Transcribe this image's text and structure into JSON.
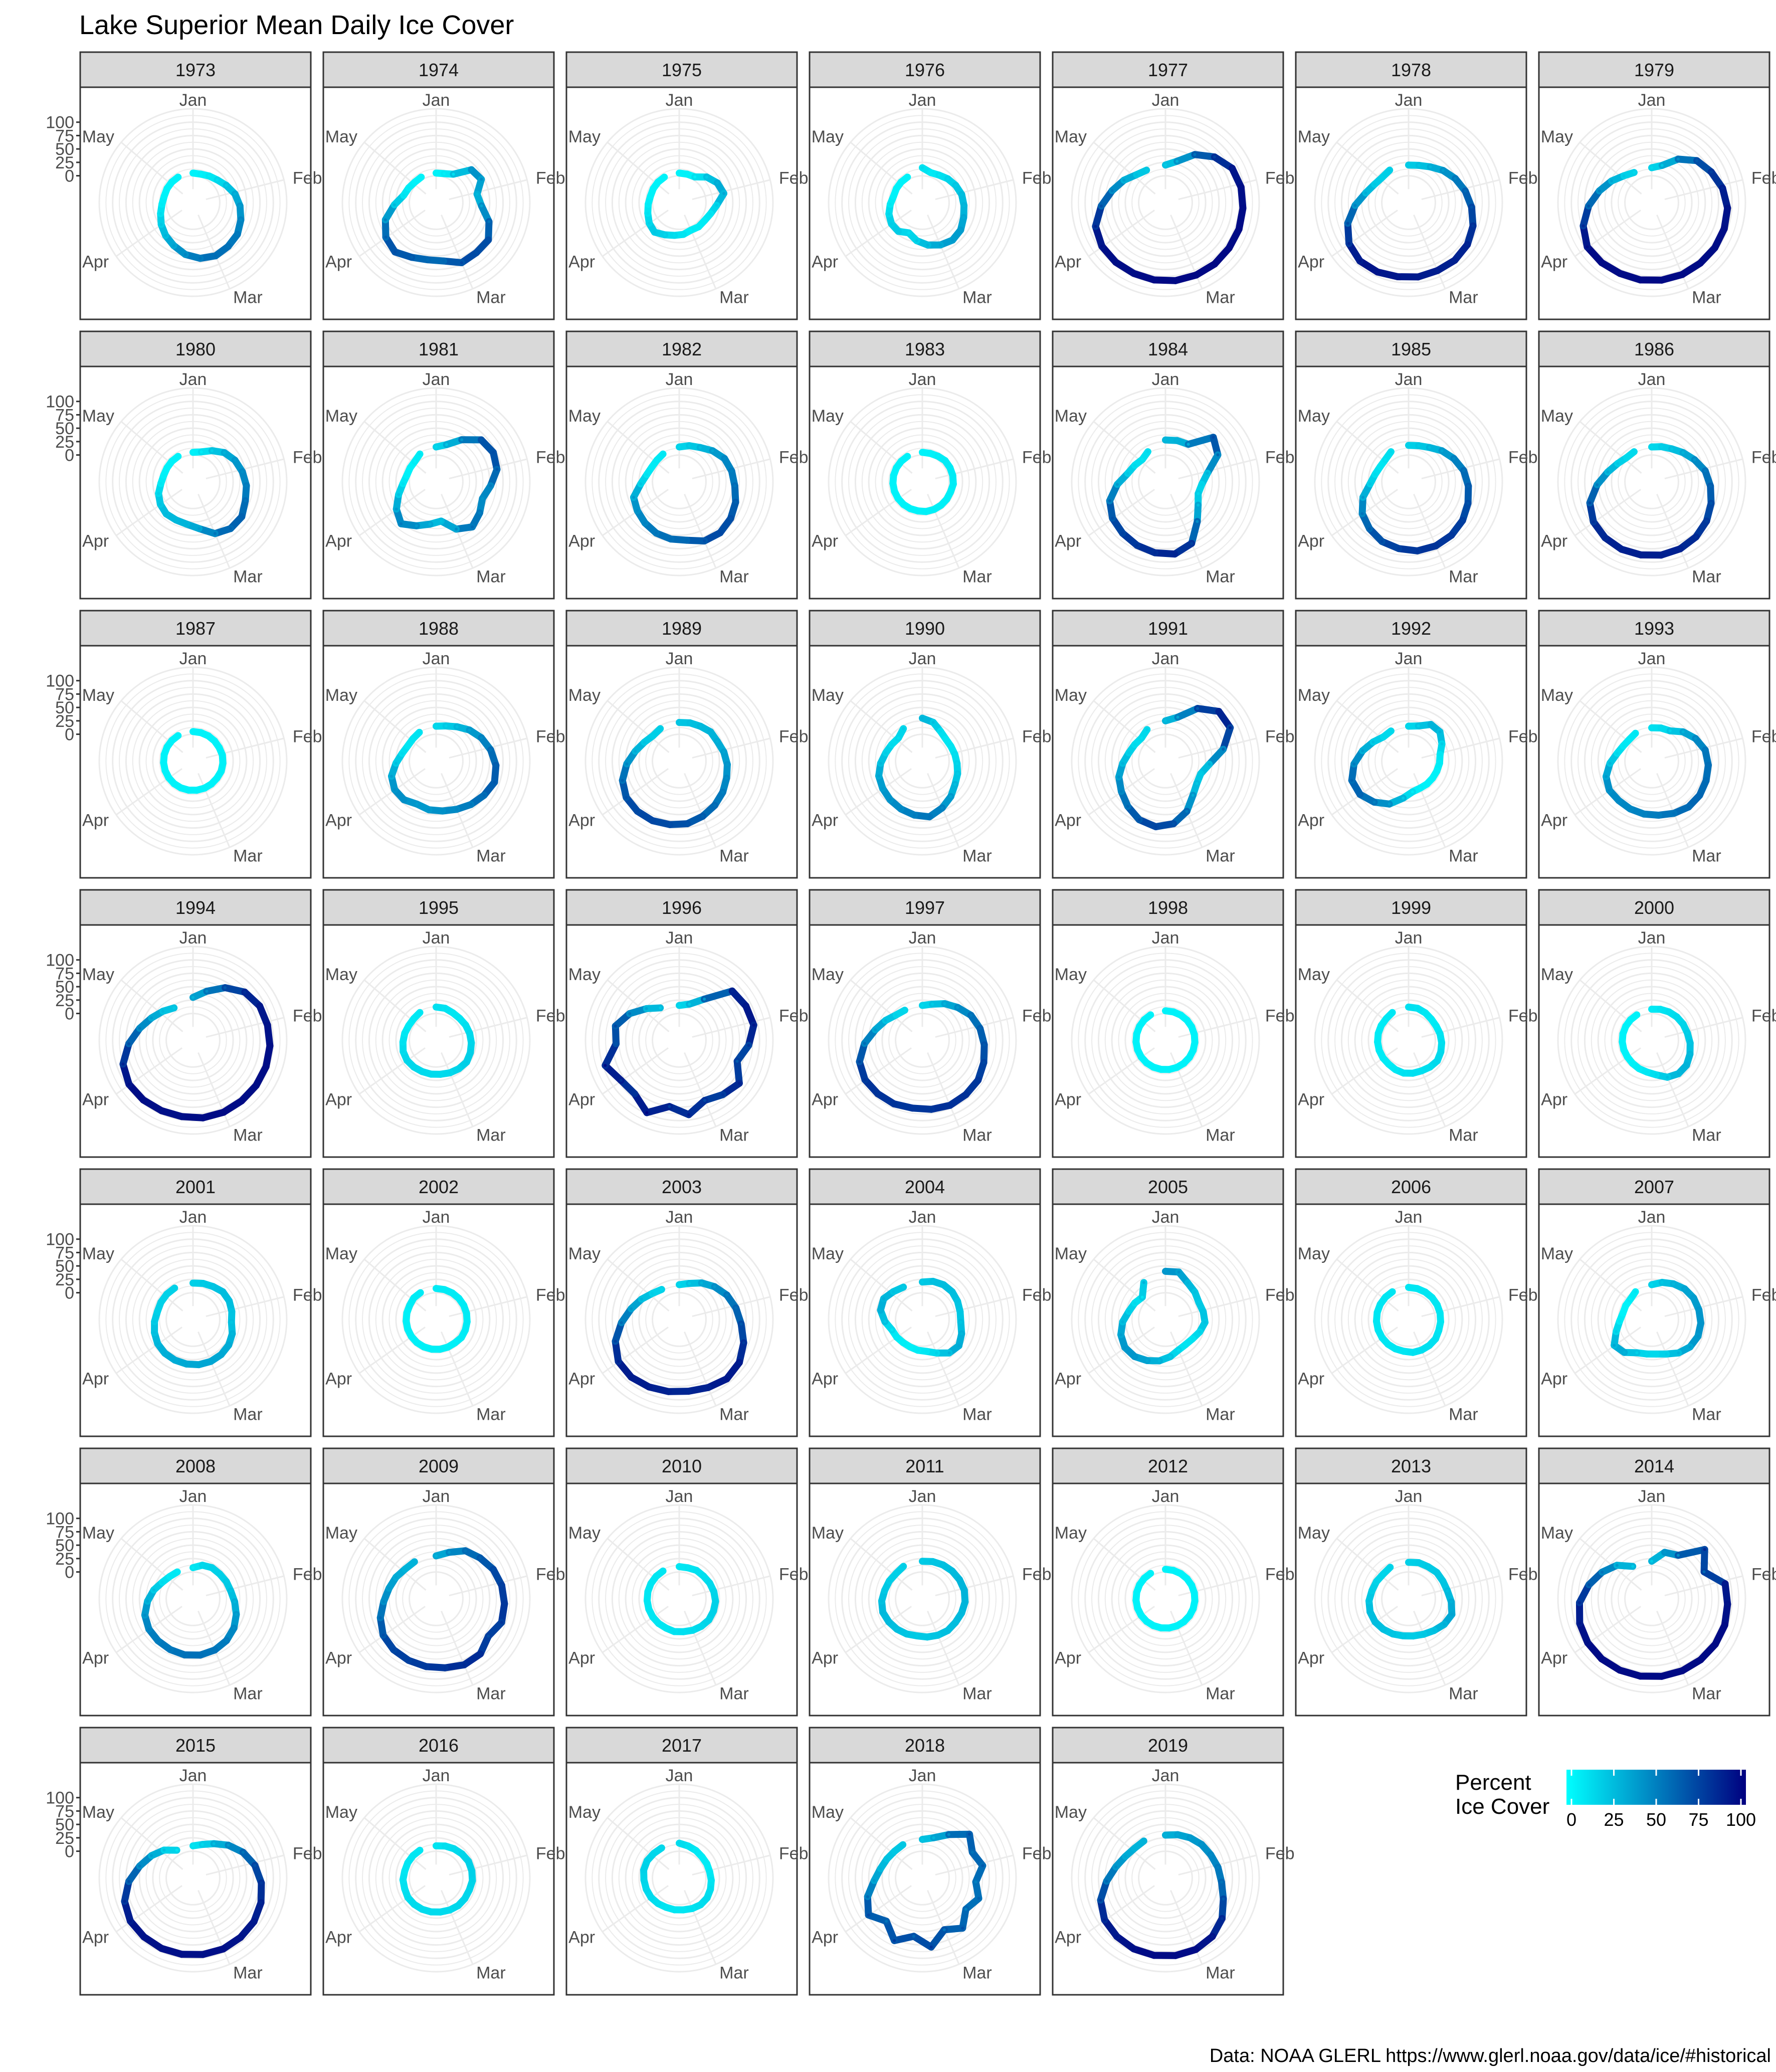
{
  "title": "Lake Superior Mean Daily Ice Cover",
  "caption": "Data: NOAA GLERL https://www.glerl.noaa.gov/data/ice/#historical",
  "colors": {
    "low": "#00FFFF",
    "high": "#000080",
    "strip_fill": "#D9D9D9",
    "panel_border": "#333333",
    "grid": "#EBEBEB",
    "axis_text": "#4D4D4D",
    "text": "#000000"
  },
  "chart_data": {
    "type": "polar-line",
    "facet_by": "year",
    "radial_axis": {
      "ticks": [
        "0",
        "25",
        "50",
        "75",
        "100"
      ],
      "range": [
        -50,
        125
      ]
    },
    "angular_axis": {
      "labels": [
        {
          "label": "Jan",
          "angle_deg": 0
        },
        {
          "label": "Feb",
          "angle_deg": 76
        },
        {
          "label": "Mar",
          "angle_deg": 157
        },
        {
          "label": "Apr",
          "angle_deg": 235
        },
        {
          "label": "May",
          "angle_deg": 310
        }
      ]
    },
    "legend": {
      "title_lines": [
        "Percent",
        "Ice Cover"
      ],
      "ticks": [
        "0",
        "25",
        "50",
        "75",
        "100"
      ],
      "position": "bottom-right"
    },
    "panels": [
      {
        "year": "1973",
        "values": [
          5,
          5,
          8,
          12,
          20,
          30,
          38,
          45,
          52,
          55,
          58,
          55,
          48,
          38,
          30,
          22,
          14,
          8,
          5,
          5,
          5,
          5
        ]
      },
      {
        "year": "1974",
        "values": [
          5,
          6,
          12,
          40,
          45,
          28,
          35,
          55,
          70,
          70,
          72,
          60,
          58,
          62,
          70,
          64,
          50,
          28,
          12,
          8,
          5,
          5
        ]
      },
      {
        "year": "1975",
        "values": [
          5,
          5,
          6,
          20,
          30,
          35,
          20,
          12,
          8,
          8,
          6,
          10,
          12,
          16,
          22,
          18,
          12,
          8,
          5,
          5,
          5,
          5
        ]
      },
      {
        "year": "1976",
        "values": [
          15,
          8,
          10,
          15,
          20,
          25,
          28,
          32,
          38,
          40,
          36,
          30,
          22,
          12,
          20,
          20,
          16,
          10,
          5,
          5,
          5,
          5
        ]
      },
      {
        "year": "1977",
        "values": [
          20,
          30,
          55,
          75,
          90,
          94,
          95,
          96,
          96,
          97,
          97,
          97,
          96,
          95,
          95,
          94,
          88,
          70,
          52,
          38,
          25,
          20
        ]
      },
      {
        "year": "1978",
        "values": [
          20,
          22,
          28,
          38,
          48,
          58,
          68,
          78,
          85,
          88,
          88,
          90,
          90,
          92,
          92,
          85,
          70,
          50,
          32,
          22,
          18,
          20
        ]
      },
      {
        "year": "1979",
        "values": [
          15,
          22,
          45,
          65,
          75,
          85,
          92,
          94,
          95,
          95,
          96,
          96,
          96,
          95,
          96,
          96,
          85,
          68,
          50,
          35,
          22,
          15
        ]
      },
      {
        "year": "1980",
        "values": [
          5,
          8,
          18,
          30,
          38,
          44,
          50,
          54,
          62,
          62,
          55,
          38,
          30,
          28,
          28,
          24,
          18,
          10,
          6,
          5,
          5,
          5
        ]
      },
      {
        "year": "1981",
        "values": [
          15,
          22,
          42,
          65,
          70,
          66,
          52,
          42,
          50,
          58,
          46,
          24,
          30,
          40,
          52,
          40,
          24,
          12,
          6,
          5,
          5,
          10
        ]
      },
      {
        "year": "1982",
        "values": [
          15,
          20,
          25,
          35,
          45,
          50,
          54,
          62,
          68,
          72,
          70,
          60,
          58,
          55,
          50,
          45,
          40,
          22,
          12,
          8,
          8,
          10
        ]
      },
      {
        "year": "1983",
        "values": [
          5,
          5,
          6,
          8,
          8,
          8,
          8,
          6,
          6,
          6,
          6,
          6,
          5,
          5,
          5,
          5,
          5,
          5,
          5,
          5,
          5,
          5
        ]
      },
      {
        "year": "1984",
        "values": [
          28,
          30,
          32,
          72,
          60,
          30,
          18,
          15,
          25,
          45,
          75,
          86,
          84,
          80,
          75,
          70,
          60,
          40,
          22,
          15,
          10,
          15
        ]
      },
      {
        "year": "1985",
        "values": [
          18,
          20,
          25,
          35,
          45,
          55,
          62,
          68,
          74,
          78,
          80,
          80,
          76,
          72,
          64,
          55,
          40,
          22,
          14,
          10,
          10,
          15
        ]
      },
      {
        "year": "1986",
        "values": [
          15,
          18,
          22,
          30,
          40,
          52,
          60,
          68,
          76,
          82,
          86,
          88,
          88,
          88,
          86,
          82,
          72,
          52,
          34,
          22,
          15,
          15
        ]
      },
      {
        "year": "1987",
        "values": [
          5,
          5,
          5,
          5,
          5,
          6,
          6,
          6,
          5,
          5,
          5,
          5,
          5,
          5,
          5,
          5,
          5,
          5,
          5,
          5,
          5,
          5
        ]
      },
      {
        "year": "1988",
        "values": [
          15,
          18,
          25,
          35,
          45,
          54,
          62,
          66,
          60,
          54,
          48,
          44,
          42,
          38,
          44,
          44,
          38,
          25,
          15,
          10,
          10,
          12
        ]
      },
      {
        "year": "1989",
        "values": [
          22,
          24,
          26,
          30,
          30,
          35,
          40,
          44,
          50,
          56,
          62,
          68,
          70,
          72,
          72,
          70,
          62,
          48,
          34,
          24,
          18,
          20
        ]
      },
      {
        "year": "1990",
        "values": [
          30,
          25,
          15,
          10,
          10,
          12,
          15,
          20,
          25,
          35,
          45,
          55,
          52,
          48,
          44,
          40,
          36,
          28,
          20,
          15,
          12,
          20
        ]
      },
      {
        "year": "1991",
        "values": [
          25,
          35,
          65,
          86,
          86,
          60,
          32,
          20,
          22,
          32,
          52,
          68,
          74,
          70,
          60,
          50,
          42,
          30,
          20,
          15,
          12,
          18
        ]
      },
      {
        "year": "1992",
        "values": [
          15,
          18,
          30,
          30,
          20,
          10,
          8,
          6,
          5,
          5,
          5,
          8,
          20,
          38,
          50,
          60,
          62,
          52,
          38,
          25,
          15,
          15
        ]
      },
      {
        "year": "1993",
        "values": [
          12,
          14,
          16,
          30,
          42,
          52,
          56,
          58,
          60,
          60,
          56,
          52,
          50,
          48,
          46,
          46,
          40,
          28,
          16,
          10,
          8,
          10
        ]
      },
      {
        "year": "1994",
        "values": [
          30,
          45,
          65,
          82,
          90,
          92,
          94,
          95,
          95,
          95,
          96,
          96,
          94,
          94,
          95,
          95,
          88,
          70,
          52,
          38,
          28,
          20
        ]
      },
      {
        "year": "1995",
        "values": [
          12,
          12,
          10,
          10,
          12,
          14,
          16,
          18,
          20,
          18,
          16,
          14,
          14,
          14,
          15,
          16,
          15,
          12,
          10,
          8,
          8,
          10
        ]
      },
      {
        "year": "1996",
        "values": [
          15,
          20,
          40,
          85,
          90,
          92,
          80,
          65,
          88,
          80,
          72,
          90,
          75,
          98,
          80,
          82,
          96,
          68,
          72,
          55,
          35,
          20
        ]
      },
      {
        "year": "1997",
        "values": [
          15,
          20,
          30,
          40,
          52,
          60,
          66,
          72,
          78,
          80,
          82,
          80,
          78,
          80,
          80,
          80,
          74,
          58,
          40,
          28,
          18,
          15
        ]
      },
      {
        "year": "1998",
        "values": [
          5,
          5,
          5,
          5,
          5,
          5,
          5,
          5,
          5,
          5,
          5,
          5,
          5,
          5,
          5,
          5,
          5,
          5,
          5,
          5,
          5,
          5
        ]
      },
      {
        "year": "1999",
        "values": [
          12,
          12,
          10,
          8,
          8,
          10,
          12,
          14,
          16,
          14,
          12,
          12,
          12,
          10,
          8,
          8,
          8,
          8,
          8,
          8,
          8,
          10
        ]
      },
      {
        "year": "2000",
        "values": [
          8,
          10,
          12,
          14,
          16,
          18,
          22,
          26,
          30,
          30,
          25,
          15,
          10,
          8,
          6,
          5,
          5,
          5,
          5,
          5,
          5,
          5
        ]
      },
      {
        "year": "2001",
        "values": [
          18,
          20,
          22,
          26,
          26,
          24,
          22,
          28,
          32,
          34,
          35,
          35,
          34,
          33,
          32,
          30,
          26,
          22,
          18,
          18,
          18,
          18
        ]
      },
      {
        "year": "2002",
        "values": [
          8,
          8,
          8,
          8,
          8,
          8,
          8,
          8,
          8,
          6,
          6,
          6,
          6,
          6,
          6,
          6,
          6,
          6,
          6,
          6,
          8,
          8
        ]
      },
      {
        "year": "2003",
        "values": [
          15,
          20,
          30,
          40,
          50,
          58,
          66,
          78,
          88,
          92,
          88,
          85,
          86,
          88,
          90,
          88,
          76,
          58,
          42,
          30,
          20,
          15
        ]
      },
      {
        "year": "2004",
        "values": [
          20,
          24,
          26,
          26,
          24,
          22,
          22,
          28,
          34,
          30,
          18,
          10,
          8,
          6,
          6,
          8,
          10,
          20,
          30,
          32,
          25,
          20
        ]
      },
      {
        "year": "2005",
        "values": [
          40,
          42,
          30,
          25,
          20,
          22,
          24,
          18,
          12,
          10,
          12,
          20,
          28,
          34,
          40,
          42,
          38,
          30,
          20,
          15,
          10,
          30
        ]
      },
      {
        "year": "2006",
        "values": [
          10,
          10,
          10,
          10,
          10,
          10,
          10,
          10,
          12,
          12,
          12,
          12,
          10,
          10,
          10,
          10,
          10,
          10,
          10,
          10,
          10,
          10
        ]
      },
      {
        "year": "2007",
        "values": [
          15,
          22,
          28,
          34,
          38,
          40,
          42,
          42,
          38,
          30,
          20,
          15,
          15,
          18,
          30,
          35,
          20,
          10,
          5,
          5,
          5,
          10
        ]
      },
      {
        "year": "2008",
        "values": [
          8,
          15,
          18,
          18,
          20,
          22,
          28,
          36,
          44,
          50,
          54,
          56,
          56,
          54,
          52,
          50,
          45,
          35,
          25,
          15,
          10,
          8
        ]
      },
      {
        "year": "2009",
        "values": [
          30,
          40,
          55,
          62,
          70,
          75,
          78,
          80,
          70,
          82,
          84,
          80,
          78,
          76,
          74,
          70,
          60,
          48,
          40,
          35,
          30,
          30
        ]
      },
      {
        "year": "2010",
        "values": [
          10,
          10,
          12,
          12,
          14,
          16,
          18,
          18,
          18,
          16,
          14,
          12,
          12,
          10,
          10,
          10,
          10,
          10,
          10,
          10,
          10,
          10
        ]
      },
      {
        "year": "2011",
        "values": [
          20,
          22,
          24,
          26,
          28,
          30,
          30,
          28,
          26,
          26,
          24,
          22,
          20,
          22,
          24,
          26,
          28,
          26,
          22,
          20,
          18,
          20
        ]
      },
      {
        "year": "2012",
        "values": [
          5,
          5,
          5,
          5,
          5,
          5,
          5,
          5,
          5,
          5,
          5,
          5,
          5,
          5,
          5,
          5,
          5,
          5,
          5,
          5,
          5,
          5
        ]
      },
      {
        "year": "2013",
        "values": [
          18,
          20,
          20,
          22,
          22,
          24,
          30,
          36,
          32,
          26,
          22,
          20,
          20,
          22,
          24,
          26,
          26,
          24,
          20,
          18,
          16,
          18
        ]
      },
      {
        "year": "2014",
        "values": [
          20,
          40,
          45,
          85,
          60,
          90,
          92,
          95,
          96,
          96,
          96,
          96,
          96,
          96,
          96,
          95,
          92,
          85,
          70,
          55,
          40,
          20
        ]
      },
      {
        "year": "2015",
        "values": [
          10,
          15,
          25,
          40,
          55,
          68,
          78,
          85,
          90,
          92,
          94,
          94,
          94,
          94,
          93,
          92,
          85,
          70,
          52,
          38,
          25,
          10
        ]
      },
      {
        "year": "2016",
        "values": [
          10,
          12,
          14,
          16,
          18,
          18,
          18,
          16,
          16,
          16,
          15,
          14,
          14,
          14,
          14,
          14,
          12,
          12,
          10,
          10,
          10,
          10
        ]
      },
      {
        "year": "2017",
        "values": [
          15,
          12,
          10,
          8,
          8,
          8,
          10,
          12,
          14,
          14,
          12,
          10,
          10,
          10,
          12,
          14,
          15,
          16,
          18,
          18,
          16,
          15
        ]
      },
      {
        "year": "2018",
        "values": [
          22,
          28,
          45,
          70,
          55,
          65,
          50,
          62,
          50,
          70,
          55,
          80,
          60,
          78,
          55,
          72,
          58,
          40,
          30,
          25,
          22,
          22
        ]
      },
      {
        "year": "2019",
        "values": [
          30,
          34,
          38,
          42,
          45,
          50,
          55,
          65,
          80,
          90,
          95,
          96,
          96,
          95,
          92,
          88,
          78,
          60,
          45,
          35,
          30,
          30
        ]
      }
    ]
  }
}
